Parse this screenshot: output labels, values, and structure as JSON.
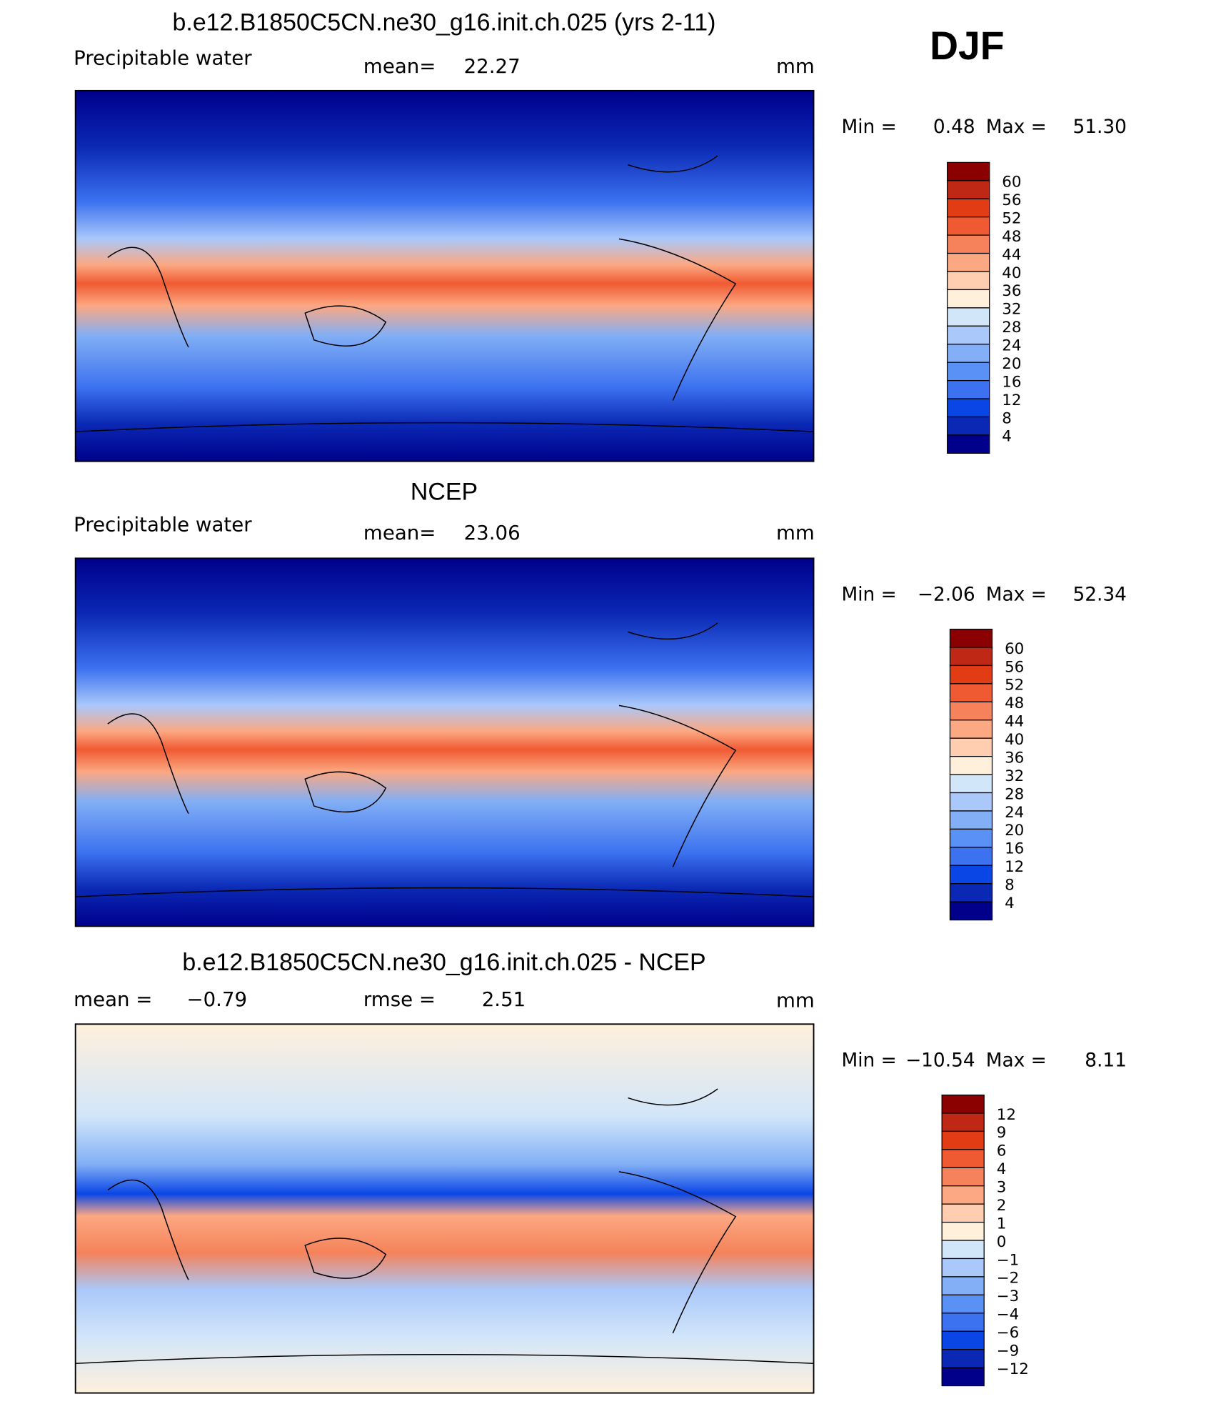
{
  "season": "DJF",
  "panels": [
    {
      "title": "b.e12.B1850C5CN.ne30_g16.init.ch.025 (yrs 2-11)",
      "left_label": "Precipitable water",
      "stat1": {
        "label": "mean=",
        "value": "22.27"
      },
      "units": "mm",
      "min": {
        "label": "Min =",
        "value": "0.48"
      },
      "max": {
        "label": "Max =",
        "value": "51.30"
      },
      "colorbar": {
        "labels": [
          "60",
          "56",
          "52",
          "48",
          "44",
          "40",
          "36",
          "32",
          "28",
          "24",
          "20",
          "16",
          "12",
          "8",
          "4"
        ],
        "colors": [
          "#8b0000",
          "#be2814",
          "#e13c14",
          "#f05a32",
          "#f5825a",
          "#fca882",
          "#ffcdb0",
          "#fff0dc",
          "#d2e6fa",
          "#aac8fa",
          "#82aff5",
          "#5a91f5",
          "#3c72f0",
          "#0a46e6",
          "#0a28b4",
          "#00008b"
        ]
      }
    },
    {
      "title": "NCEP",
      "left_label": "Precipitable water",
      "stat1": {
        "label": "mean=",
        "value": "23.06"
      },
      "units": "mm",
      "min": {
        "label": "Min =",
        "value": "−2.06"
      },
      "max": {
        "label": "Max =",
        "value": "52.34"
      },
      "colorbar": {
        "labels": [
          "60",
          "56",
          "52",
          "48",
          "44",
          "40",
          "36",
          "32",
          "28",
          "24",
          "20",
          "16",
          "12",
          "8",
          "4"
        ],
        "colors": [
          "#8b0000",
          "#be2814",
          "#e13c14",
          "#f05a32",
          "#f5825a",
          "#fca882",
          "#ffcdb0",
          "#fff0dc",
          "#d2e6fa",
          "#aac8fa",
          "#82aff5",
          "#5a91f5",
          "#3c72f0",
          "#0a46e6",
          "#0a28b4",
          "#00008b"
        ]
      }
    },
    {
      "title": "b.e12.B1850C5CN.ne30_g16.init.ch.025 - NCEP",
      "stat1": {
        "label": "mean =",
        "value": "−0.79"
      },
      "stat2": {
        "label": "rmse =",
        "value": "2.51"
      },
      "units": "mm",
      "min": {
        "label": "Min =",
        "value": "−10.54"
      },
      "max": {
        "label": "Max =",
        "value": "8.11"
      },
      "colorbar": {
        "labels": [
          "12",
          "9",
          "6",
          "4",
          "3",
          "2",
          "1",
          "0",
          "−1",
          "−2",
          "−3",
          "−4",
          "−6",
          "−9",
          "−12"
        ],
        "colors": [
          "#8b0000",
          "#be2814",
          "#e13c14",
          "#f05a32",
          "#f5825a",
          "#fca882",
          "#ffcdb0",
          "#fff0dc",
          "#d2e6fa",
          "#aac8fa",
          "#82aff5",
          "#5a91f5",
          "#3c72f0",
          "#0a46e6",
          "#0a28b4",
          "#00008b"
        ]
      }
    }
  ]
}
